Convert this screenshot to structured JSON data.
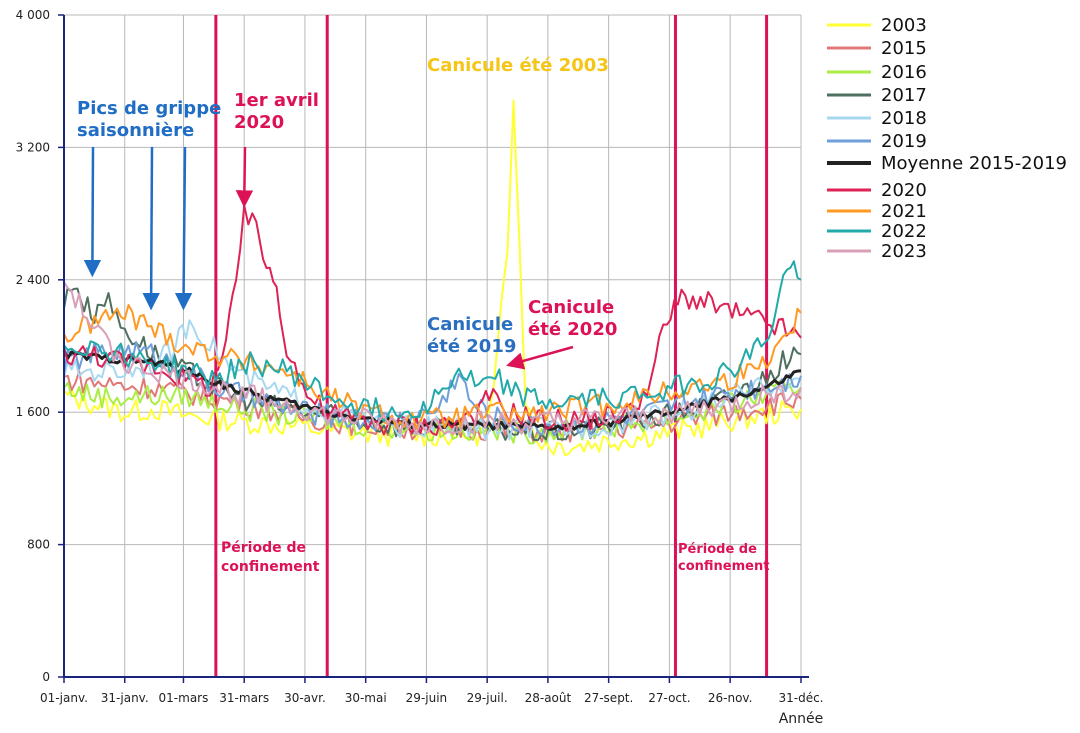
{
  "chart_data": {
    "type": "line",
    "title": "",
    "xlabel": "Année",
    "ylabel": "",
    "ylim": [
      0,
      4000
    ],
    "yticks": [
      0,
      800,
      1600,
      2400,
      3200,
      4000
    ],
    "ytick_labels": [
      "0",
      "800",
      "1 600",
      "2 400",
      "3 200",
      "4 000"
    ],
    "xlim": [
      0,
      364
    ],
    "xticks": [
      0,
      30,
      59,
      89,
      119,
      149,
      179,
      209,
      239,
      269,
      299,
      329,
      364
    ],
    "xtick_labels": [
      "01-janv.",
      "31-janv.",
      "01-mars",
      "31-mars",
      "30-avr.",
      "30-mai",
      "29-juin",
      "29-juil.",
      "28-août",
      "27-sept.",
      "27-oct.",
      "26-nov.",
      "31-déc."
    ],
    "grid": true,
    "legend_position": "right",
    "series": [
      {
        "name": "2003",
        "color": "#ffff33",
        "values": [
          [
            0,
            1700
          ],
          [
            15,
            1650
          ],
          [
            30,
            1600
          ],
          [
            45,
            1620
          ],
          [
            60,
            1580
          ],
          [
            75,
            1560
          ],
          [
            90,
            1540
          ],
          [
            110,
            1520
          ],
          [
            130,
            1490
          ],
          [
            150,
            1470
          ],
          [
            170,
            1460
          ],
          [
            190,
            1460
          ],
          [
            208,
            1470
          ],
          [
            212,
            1700
          ],
          [
            216,
            2200
          ],
          [
            219,
            2600
          ],
          [
            222,
            3550
          ],
          [
            225,
            2600
          ],
          [
            228,
            1700
          ],
          [
            232,
            1450
          ],
          [
            240,
            1400
          ],
          [
            255,
            1400
          ],
          [
            270,
            1430
          ],
          [
            285,
            1450
          ],
          [
            300,
            1480
          ],
          [
            315,
            1510
          ],
          [
            330,
            1550
          ],
          [
            345,
            1580
          ],
          [
            364,
            1620
          ]
        ]
      },
      {
        "name": "2015",
        "color": "#e07878",
        "values": [
          [
            0,
            1800
          ],
          [
            15,
            1780
          ],
          [
            30,
            1760
          ],
          [
            45,
            1750
          ],
          [
            60,
            1720
          ],
          [
            75,
            1680
          ],
          [
            90,
            1650
          ],
          [
            110,
            1590
          ],
          [
            130,
            1550
          ],
          [
            150,
            1520
          ],
          [
            170,
            1500
          ],
          [
            190,
            1500
          ],
          [
            210,
            1500
          ],
          [
            230,
            1480
          ],
          [
            250,
            1480
          ],
          [
            270,
            1500
          ],
          [
            290,
            1520
          ],
          [
            310,
            1560
          ],
          [
            330,
            1600
          ],
          [
            345,
            1640
          ],
          [
            364,
            1680
          ]
        ]
      },
      {
        "name": "2016",
        "color": "#aaee44",
        "values": [
          [
            0,
            1750
          ],
          [
            15,
            1700
          ],
          [
            30,
            1690
          ],
          [
            45,
            1700
          ],
          [
            60,
            1700
          ],
          [
            75,
            1660
          ],
          [
            90,
            1620
          ],
          [
            110,
            1580
          ],
          [
            130,
            1550
          ],
          [
            150,
            1520
          ],
          [
            170,
            1500
          ],
          [
            190,
            1490
          ],
          [
            210,
            1490
          ],
          [
            230,
            1480
          ],
          [
            250,
            1490
          ],
          [
            270,
            1510
          ],
          [
            290,
            1550
          ],
          [
            310,
            1590
          ],
          [
            330,
            1650
          ],
          [
            345,
            1700
          ],
          [
            364,
            1750
          ]
        ]
      },
      {
        "name": "2017",
        "color": "#4f6f5f",
        "values": [
          [
            0,
            2250
          ],
          [
            5,
            2400
          ],
          [
            10,
            2250
          ],
          [
            15,
            2200
          ],
          [
            20,
            2300
          ],
          [
            30,
            2100
          ],
          [
            45,
            1950
          ],
          [
            60,
            1850
          ],
          [
            75,
            1750
          ],
          [
            90,
            1680
          ],
          [
            110,
            1620
          ],
          [
            130,
            1580
          ],
          [
            150,
            1540
          ],
          [
            170,
            1510
          ],
          [
            190,
            1500
          ],
          [
            210,
            1500
          ],
          [
            230,
            1480
          ],
          [
            250,
            1480
          ],
          [
            270,
            1520
          ],
          [
            290,
            1560
          ],
          [
            310,
            1620
          ],
          [
            330,
            1700
          ],
          [
            345,
            1800
          ],
          [
            355,
            1900
          ],
          [
            364,
            1950
          ]
        ]
      },
      {
        "name": "2018",
        "color": "#a8d8f0",
        "values": [
          [
            0,
            1850
          ],
          [
            15,
            1850
          ],
          [
            30,
            1850
          ],
          [
            45,
            1900
          ],
          [
            55,
            2000
          ],
          [
            62,
            2150
          ],
          [
            70,
            2050
          ],
          [
            80,
            1900
          ],
          [
            90,
            1800
          ],
          [
            110,
            1700
          ],
          [
            130,
            1600
          ],
          [
            150,
            1550
          ],
          [
            170,
            1510
          ],
          [
            190,
            1510
          ],
          [
            210,
            1500
          ],
          [
            230,
            1500
          ],
          [
            250,
            1500
          ],
          [
            270,
            1530
          ],
          [
            290,
            1570
          ],
          [
            310,
            1620
          ],
          [
            330,
            1700
          ],
          [
            345,
            1750
          ],
          [
            364,
            1800
          ]
        ]
      },
      {
        "name": "2019",
        "color": "#6f9fd8",
        "values": [
          [
            0,
            1900
          ],
          [
            15,
            1950
          ],
          [
            30,
            1980
          ],
          [
            45,
            1950
          ],
          [
            60,
            1850
          ],
          [
            75,
            1750
          ],
          [
            90,
            1700
          ],
          [
            110,
            1620
          ],
          [
            130,
            1580
          ],
          [
            150,
            1550
          ],
          [
            170,
            1560
          ],
          [
            185,
            1620
          ],
          [
            195,
            1850
          ],
          [
            200,
            1680
          ],
          [
            210,
            1580
          ],
          [
            230,
            1520
          ],
          [
            250,
            1520
          ],
          [
            270,
            1550
          ],
          [
            290,
            1600
          ],
          [
            310,
            1660
          ],
          [
            330,
            1720
          ],
          [
            345,
            1760
          ],
          [
            364,
            1820
          ]
        ]
      },
      {
        "name": "Moyenne 2015-2019",
        "color": "#222222",
        "values": [
          [
            0,
            1950
          ],
          [
            15,
            1930
          ],
          [
            30,
            1920
          ],
          [
            45,
            1900
          ],
          [
            60,
            1850
          ],
          [
            75,
            1780
          ],
          [
            90,
            1720
          ],
          [
            110,
            1660
          ],
          [
            130,
            1600
          ],
          [
            150,
            1560
          ],
          [
            170,
            1530
          ],
          [
            190,
            1520
          ],
          [
            210,
            1520
          ],
          [
            230,
            1510
          ],
          [
            250,
            1510
          ],
          [
            270,
            1540
          ],
          [
            290,
            1580
          ],
          [
            310,
            1630
          ],
          [
            330,
            1690
          ],
          [
            345,
            1740
          ],
          [
            355,
            1790
          ],
          [
            364,
            1850
          ]
        ]
      },
      {
        "name": "2020",
        "color": "#dd2255",
        "values": [
          [
            0,
            1950
          ],
          [
            15,
            1950
          ],
          [
            30,
            1900
          ],
          [
            45,
            1880
          ],
          [
            60,
            1800
          ],
          [
            72,
            1750
          ],
          [
            80,
            2000
          ],
          [
            85,
            2400
          ],
          [
            89,
            2800
          ],
          [
            95,
            2700
          ],
          [
            100,
            2500
          ],
          [
            105,
            2350
          ],
          [
            110,
            2000
          ],
          [
            120,
            1700
          ],
          [
            130,
            1600
          ],
          [
            150,
            1540
          ],
          [
            170,
            1520
          ],
          [
            190,
            1530
          ],
          [
            205,
            1600
          ],
          [
            210,
            1700
          ],
          [
            220,
            1600
          ],
          [
            240,
            1550
          ],
          [
            260,
            1560
          ],
          [
            280,
            1600
          ],
          [
            290,
            1800
          ],
          [
            296,
            2100
          ],
          [
            305,
            2300
          ],
          [
            320,
            2250
          ],
          [
            330,
            2200
          ],
          [
            345,
            2150
          ],
          [
            355,
            2100
          ],
          [
            364,
            2050
          ]
        ]
      },
      {
        "name": "2021",
        "color": "#ff9922",
        "values": [
          [
            0,
            2050
          ],
          [
            15,
            2150
          ],
          [
            30,
            2200
          ],
          [
            45,
            2100
          ],
          [
            60,
            2000
          ],
          [
            75,
            1950
          ],
          [
            90,
            1900
          ],
          [
            110,
            1850
          ],
          [
            130,
            1700
          ],
          [
            150,
            1600
          ],
          [
            170,
            1550
          ],
          [
            190,
            1560
          ],
          [
            210,
            1600
          ],
          [
            230,
            1580
          ],
          [
            250,
            1620
          ],
          [
            270,
            1650
          ],
          [
            290,
            1700
          ],
          [
            310,
            1750
          ],
          [
            330,
            1800
          ],
          [
            345,
            1900
          ],
          [
            355,
            2050
          ],
          [
            364,
            2200
          ]
        ]
      },
      {
        "name": "2022",
        "color": "#22aaaa",
        "values": [
          [
            0,
            2000
          ],
          [
            15,
            2000
          ],
          [
            30,
            1950
          ],
          [
            45,
            1900
          ],
          [
            60,
            1850
          ],
          [
            75,
            1800
          ],
          [
            90,
            1900
          ],
          [
            110,
            1850
          ],
          [
            130,
            1700
          ],
          [
            150,
            1620
          ],
          [
            170,
            1600
          ],
          [
            185,
            1700
          ],
          [
            195,
            1850
          ],
          [
            205,
            1750
          ],
          [
            215,
            1800
          ],
          [
            225,
            1700
          ],
          [
            240,
            1650
          ],
          [
            260,
            1680
          ],
          [
            280,
            1700
          ],
          [
            300,
            1750
          ],
          [
            320,
            1800
          ],
          [
            335,
            1900
          ],
          [
            350,
            2100
          ],
          [
            357,
            2500
          ],
          [
            364,
            2400
          ]
        ]
      },
      {
        "name": "2023",
        "color": "#d8a0b8",
        "values": [
          [
            0,
            2400
          ],
          [
            15,
            2100
          ],
          [
            30,
            1900
          ],
          [
            45,
            1850
          ],
          [
            60,
            1800
          ],
          [
            75,
            1750
          ],
          [
            90,
            1700
          ],
          [
            110,
            1650
          ],
          [
            130,
            1580
          ],
          [
            150,
            1550
          ],
          [
            170,
            1520
          ],
          [
            190,
            1530
          ],
          [
            210,
            1540
          ],
          [
            230,
            1530
          ],
          [
            250,
            1550
          ],
          [
            270,
            1560
          ],
          [
            290,
            1580
          ],
          [
            310,
            1620
          ],
          [
            330,
            1650
          ],
          [
            345,
            1700
          ],
          [
            364,
            1750
          ]
        ]
      }
    ],
    "vlines": [
      {
        "x": 75,
        "color": "#dd1155"
      },
      {
        "x": 130,
        "color": "#dd1155"
      },
      {
        "x": 302,
        "color": "#dd1155"
      },
      {
        "x": 347,
        "color": "#dd1155"
      }
    ],
    "annotations": [
      {
        "id": "grippe",
        "lines": [
          "Pics de grippe",
          "saisonnière"
        ],
        "color": "#1f6dc4",
        "arrows_to": [
          [
            14,
            2400
          ],
          [
            43,
            2200
          ],
          [
            59,
            2200
          ]
        ]
      },
      {
        "id": "avril",
        "lines": [
          "1er avril",
          "2020"
        ],
        "color": "#dd1155",
        "arrows_to": [
          [
            89,
            2820
          ]
        ]
      },
      {
        "id": "canicule2003",
        "lines": [
          "Canicule été 2003"
        ],
        "color": "#f5c518"
      },
      {
        "id": "canicule2019",
        "lines": [
          "Canicule",
          "été 2019"
        ],
        "color": "#2a6fc0"
      },
      {
        "id": "canicule2020",
        "lines": [
          "Canicule",
          "été 2020"
        ],
        "color": "#dd1155",
        "arrows_to": [
          [
            220,
            1850
          ]
        ]
      },
      {
        "id": "conf1",
        "lines": [
          "Période de",
          "confinement"
        ],
        "color": "#dd1155"
      },
      {
        "id": "conf2",
        "lines": [
          "Période de",
          "confinement"
        ],
        "color": "#dd1155"
      }
    ]
  }
}
